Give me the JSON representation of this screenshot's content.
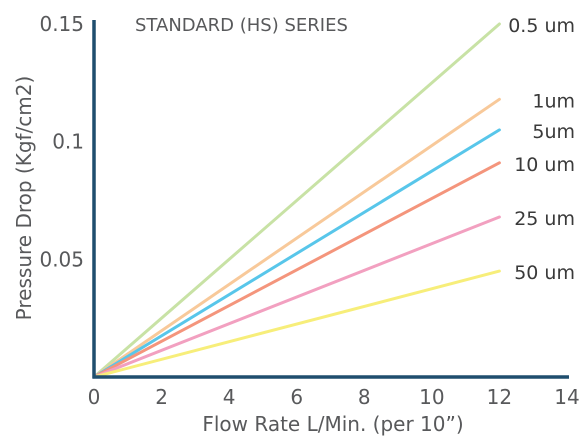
{
  "chart_data": {
    "type": "line",
    "title": "STANDARD (HS) SERIES",
    "xlabel": "Flow Rate L/Min. (per 10”)",
    "ylabel": "Pressure Drop (Kgf/cm2)",
    "xlim": [
      0,
      14
    ],
    "ylim": [
      0,
      0.15
    ],
    "x_ticks": [
      "0",
      "2",
      "4",
      "6",
      "8",
      "10",
      "12",
      "14"
    ],
    "y_ticks": [
      "0.05",
      "0.1",
      "0.15"
    ],
    "grid": false,
    "series": [
      {
        "name": "0.5 um",
        "color": "#c8e2a5",
        "x": [
          0,
          12
        ],
        "y": [
          0,
          0.15
        ]
      },
      {
        "name": "1um",
        "color": "#f8c99a",
        "x": [
          0,
          12
        ],
        "y": [
          0,
          0.118
        ]
      },
      {
        "name": "5um",
        "color": "#58c6ea",
        "x": [
          0,
          12
        ],
        "y": [
          0,
          0.105
        ]
      },
      {
        "name": "10 um",
        "color": "#f4957c",
        "x": [
          0,
          12
        ],
        "y": [
          0,
          0.091
        ]
      },
      {
        "name": "25 um",
        "color": "#f2a0c0",
        "x": [
          0,
          12
        ],
        "y": [
          0,
          0.068
        ]
      },
      {
        "name": "50 um",
        "color": "#f7ee7a",
        "x": [
          0,
          12
        ],
        "y": [
          0,
          0.045
        ]
      }
    ]
  }
}
